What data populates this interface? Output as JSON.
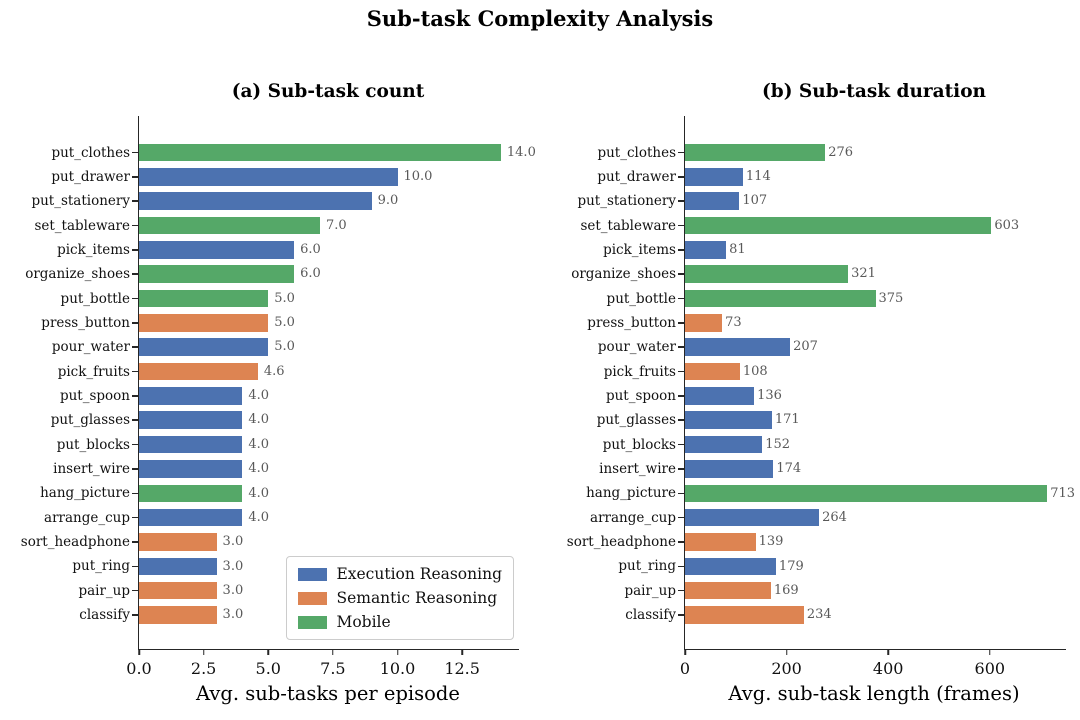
{
  "title": "Sub-task Complexity Analysis",
  "colors": {
    "execution": "#4C72B0",
    "semantic": "#DD8452",
    "mobile": "#55A868",
    "value_label": "#595959",
    "spine": "#262626"
  },
  "legend": {
    "items": [
      {
        "label": "Execution Reasoning",
        "series": "execution"
      },
      {
        "label": "Semantic Reasoning",
        "series": "semantic"
      },
      {
        "label": "Mobile",
        "series": "mobile"
      }
    ],
    "position": "lower-right-of-left-subplot"
  },
  "categories": [
    "put_clothes",
    "put_drawer",
    "put_stationery",
    "set_tableware",
    "pick_items",
    "organize_shoes",
    "put_bottle",
    "press_button",
    "pour_water",
    "pick_fruits",
    "put_spoon",
    "put_glasses",
    "put_blocks",
    "insert_wire",
    "hang_picture",
    "arrange_cup",
    "sort_headphone",
    "put_ring",
    "pair_up",
    "classify"
  ],
  "groups": [
    "mobile",
    "execution",
    "execution",
    "mobile",
    "execution",
    "mobile",
    "mobile",
    "semantic",
    "execution",
    "semantic",
    "execution",
    "execution",
    "execution",
    "execution",
    "mobile",
    "execution",
    "semantic",
    "execution",
    "semantic",
    "semantic"
  ],
  "chart_data": [
    {
      "type": "bar",
      "orientation": "horizontal",
      "title": "(a) Sub-task count",
      "xlabel": "Avg. sub-tasks per episode",
      "xlim": [
        0,
        14.7
      ],
      "xticks": [
        0,
        2.5,
        5,
        7.5,
        10,
        12.5
      ],
      "xtick_labels": [
        "0.0",
        "2.5",
        "5.0",
        "7.5",
        "10.0",
        "12.5"
      ],
      "grid": false,
      "values": [
        14.0,
        10.0,
        9.0,
        7.0,
        6.0,
        6.0,
        5.0,
        5.0,
        5.0,
        4.6,
        4.0,
        4.0,
        4.0,
        4.0,
        4.0,
        4.0,
        3.0,
        3.0,
        3.0,
        3.0
      ],
      "value_labels": [
        "14.0",
        "10.0",
        "9.0",
        "7.0",
        "6.0",
        "6.0",
        "5.0",
        "5.0",
        "5.0",
        "4.6",
        "4.0",
        "4.0",
        "4.0",
        "4.0",
        "4.0",
        "4.0",
        "3.0",
        "3.0",
        "3.0",
        "3.0"
      ]
    },
    {
      "type": "bar",
      "orientation": "horizontal",
      "title": "(b) Sub-task duration",
      "xlabel": "Avg. sub-task length (frames)",
      "xlim": [
        0,
        750
      ],
      "xticks": [
        0,
        200,
        400,
        600
      ],
      "xtick_labels": [
        "0",
        "200",
        "400",
        "600"
      ],
      "grid": false,
      "values": [
        276,
        114,
        107,
        603,
        81,
        321,
        375,
        73,
        207,
        108,
        136,
        171,
        152,
        174,
        713,
        264,
        139,
        179,
        169,
        234
      ],
      "value_labels": [
        "276",
        "114",
        "107",
        "603",
        "81",
        "321",
        "375",
        "73",
        "207",
        "108",
        "136",
        "171",
        "152",
        "174",
        "713",
        "264",
        "139",
        "179",
        "169",
        "234"
      ]
    }
  ]
}
